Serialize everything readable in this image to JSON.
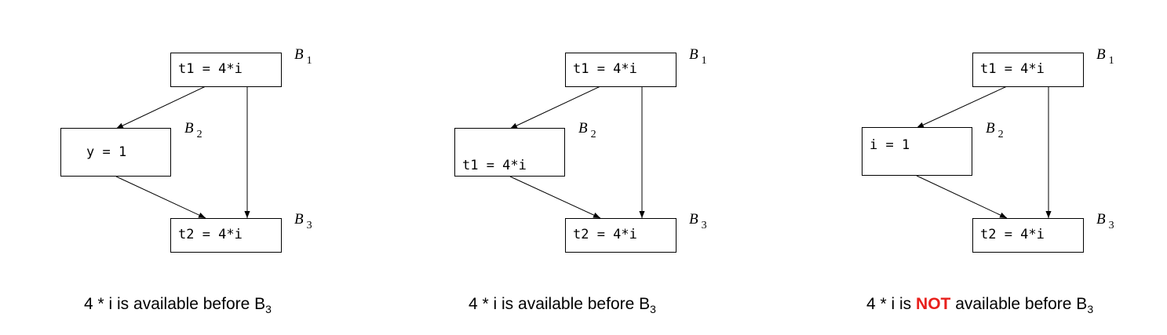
{
  "diagrams": [
    {
      "b1": {
        "code": "t1 = 4*i",
        "label": "B",
        "sub": "1"
      },
      "b2": {
        "code": "y = 1",
        "label": "B",
        "sub": "2"
      },
      "b3": {
        "code": "t2 = 4*i",
        "label": "B",
        "sub": "3"
      },
      "caption": {
        "pre": "4 * i is available before B",
        "emph": "",
        "post": "",
        "sub": "3"
      }
    },
    {
      "b1": {
        "code": "t1 = 4*i",
        "label": "B",
        "sub": "1"
      },
      "b2": {
        "code": "t1 = 4*i",
        "label": "B",
        "sub": "2"
      },
      "b3": {
        "code": "t2 = 4*i",
        "label": "B",
        "sub": "3"
      },
      "caption": {
        "pre": "4 * i is available before B",
        "emph": "",
        "post": "",
        "sub": "3"
      }
    },
    {
      "b1": {
        "code": "t1 = 4*i",
        "label": "B",
        "sub": "1"
      },
      "b2": {
        "code": "i = 1",
        "label": "B",
        "sub": "2"
      },
      "b3": {
        "code": "t2 = 4*i",
        "label": "B",
        "sub": "3"
      },
      "caption": {
        "pre": "4 * i is ",
        "emph": "NOT",
        "post": " available before B",
        "sub": "3"
      }
    }
  ]
}
